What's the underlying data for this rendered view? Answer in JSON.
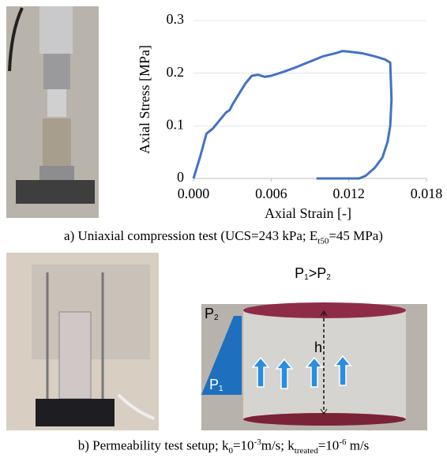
{
  "chart_data": {
    "type": "line",
    "x_label": "Axial Strain [-]",
    "y_label": "Axial Stress [MPa]",
    "x": [
      0,
      0.0005,
      0.001,
      0.0015,
      0.002,
      0.0025,
      0.0028,
      0.003,
      0.0035,
      0.004,
      0.0045,
      0.005,
      0.0055,
      0.006,
      0.007,
      0.008,
      0.009,
      0.01,
      0.011,
      0.0115,
      0.012,
      0.013,
      0.014,
      0.0148,
      0.0152,
      0.0153,
      0.0152,
      0.015,
      0.0146,
      0.014,
      0.0133,
      0.0128,
      0.011,
      0.0095
    ],
    "series": [
      {
        "color": "#4472c4",
        "values": [
          0,
          0.04,
          0.085,
          0.095,
          0.11,
          0.125,
          0.13,
          0.14,
          0.16,
          0.18,
          0.195,
          0.197,
          0.193,
          0.195,
          0.203,
          0.212,
          0.222,
          0.232,
          0.238,
          0.242,
          0.241,
          0.238,
          0.232,
          0.226,
          0.22,
          0.15,
          0.1,
          0.07,
          0.04,
          0.02,
          0.005,
          0,
          0,
          0
        ]
      }
    ],
    "xlim": [
      0,
      0.018
    ],
    "xticks": [
      {
        "value": 0,
        "label": "0.000"
      },
      0.006,
      0.012,
      0.018
    ],
    "ylim": [
      0,
      0.3
    ],
    "yticks": [
      0,
      0.1,
      0.2,
      0.3
    ],
    "grid": true
  },
  "captions": {
    "a": [
      "a) Uniaxial compression test (UCS=243 kPa; E",
      "t50",
      "=45 MPa)"
    ],
    "b": [
      "b) Permeability test setup; k",
      "0",
      "=10",
      "-3",
      "m/s; k",
      "treated",
      "=10",
      "-6",
      " m/s"
    ]
  },
  "diagram": {
    "title": [
      "P",
      "1",
      ">P",
      "2"
    ],
    "p2": [
      "P",
      "2"
    ],
    "p1": [
      "P",
      "1"
    ],
    "h": "h"
  }
}
